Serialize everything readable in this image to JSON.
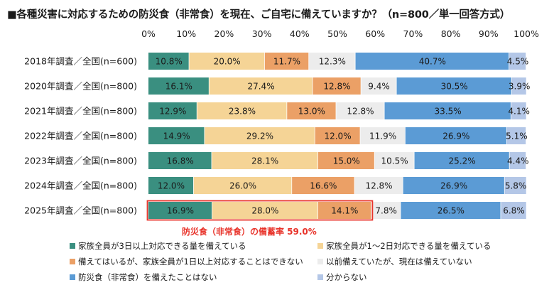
{
  "title": "■各種災害に対応するための防災食（非常食）を現在、ご自宅に備えていますか？（n=800／単一回答方式）",
  "highlight_note": "防災食（非常食）の備蓄率 59.0%",
  "colors": {
    "s1": "#3a8f80",
    "s2": "#f5d496",
    "s3": "#eba066",
    "s4": "#ececec",
    "s5": "#5b9bd5",
    "s6": "#b4c7e7",
    "highlight": "#e8332a"
  },
  "chart_data": {
    "type": "bar",
    "orientation": "horizontal",
    "stacked": true,
    "percent_stacked": true,
    "title": "■各種災害に対応するための防災食（非常食）を現在、ご自宅に備えていますか？（n=800／単一回答方式）",
    "xlim": [
      0,
      100
    ],
    "x_ticks": [
      "0%",
      "10%",
      "20%",
      "30%",
      "40%",
      "50%",
      "60%",
      "70%",
      "80%",
      "90%",
      "100%"
    ],
    "categories": [
      "2018年調査／全国(n=600)",
      "2020年調査／全国(n=800)",
      "2021年調査／全国(n=800)",
      "2022年調査／全国(n=800)",
      "2023年調査／全国(n=800)",
      "2024年調査／全国(n=800)",
      "2025年調査／全国(n=800)"
    ],
    "series": [
      {
        "name": "家族全員が3日以上対応できる量を備えている",
        "color": "#3a8f80",
        "values": [
          10.8,
          16.1,
          12.9,
          14.9,
          16.8,
          12.0,
          16.9
        ],
        "labels": [
          "10.8%",
          "16.1%",
          "12.9%",
          "14.9%",
          "16.8%",
          "12.0%",
          "16.9%"
        ]
      },
      {
        "name": "家族全員が1～2日対応できる量を備えている",
        "color": "#f5d496",
        "values": [
          20.0,
          27.4,
          23.8,
          29.2,
          28.1,
          26.0,
          28.0
        ],
        "labels": [
          "20.0%",
          "27.4%",
          "23.8%",
          "29.2%",
          "28.1%",
          "26.0%",
          "28.0%"
        ]
      },
      {
        "name": "備えてはいるが、家族全員が1日以上対応することはできない",
        "color": "#eba066",
        "values": [
          11.7,
          12.8,
          13.0,
          12.0,
          15.0,
          16.6,
          14.1
        ],
        "labels": [
          "11.7%",
          "12.8%",
          "13.0%",
          "12.0%",
          "15.0%",
          "16.6%",
          "14.1%"
        ]
      },
      {
        "name": "以前備えていたが、現在は備えていない",
        "color": "#ececec",
        "values": [
          12.3,
          9.4,
          12.8,
          11.9,
          10.5,
          12.8,
          7.8
        ],
        "labels": [
          "12.3%",
          "9.4%",
          "12.8%",
          "11.9%",
          "10.5%",
          "12.8%",
          "7.8%"
        ]
      },
      {
        "name": "防災食（非常食）を備えたことはない",
        "color": "#5b9bd5",
        "values": [
          40.7,
          30.5,
          33.5,
          26.9,
          25.2,
          26.9,
          26.5
        ],
        "labels": [
          "40.7%",
          "30.5%",
          "33.5%",
          "26.9%",
          "25.2%",
          "26.9%",
          "26.5%"
        ]
      },
      {
        "name": "分からない",
        "color": "#b4c7e7",
        "values": [
          4.5,
          3.9,
          4.1,
          5.1,
          4.4,
          5.8,
          6.8
        ],
        "labels": [
          "4.5%",
          "3.9%",
          "4.1%",
          "5.1%",
          "4.4%",
          "5.8%",
          "6.8%"
        ]
      }
    ],
    "highlight": {
      "category_index": 6,
      "series_range": [
        0,
        2
      ],
      "note": "防災食（非常食）の備蓄率 59.0%"
    },
    "legend_position": "bottom",
    "grid": false
  }
}
